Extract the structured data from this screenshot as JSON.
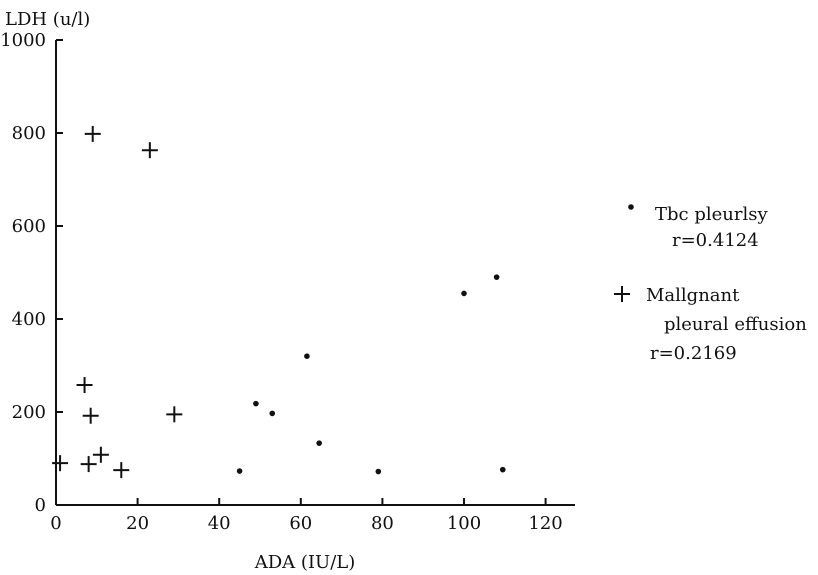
{
  "chart_data": {
    "type": "scatter",
    "xlabel": "ADA (IU/L)",
    "ylabel": "LDH (u/l)",
    "xlim": [
      0,
      125
    ],
    "ylim": [
      0,
      1000
    ],
    "xticks": [
      "0",
      "20",
      "40",
      "60",
      "80",
      "100",
      "120"
    ],
    "yticks": [
      "0",
      "200",
      "400",
      "600",
      "800",
      "1000"
    ],
    "grid": false,
    "legend_position": "right",
    "series": [
      {
        "name": "Tbc pleurlsy",
        "stat": "r=0.4124",
        "marker": "dot",
        "color": "#111111",
        "points": [
          {
            "x": 45,
            "y": 73
          },
          {
            "x": 49,
            "y": 218
          },
          {
            "x": 53,
            "y": 197
          },
          {
            "x": 61.5,
            "y": 320
          },
          {
            "x": 64.5,
            "y": 133
          },
          {
            "x": 79,
            "y": 72
          },
          {
            "x": 100,
            "y": 455
          },
          {
            "x": 108,
            "y": 490
          },
          {
            "x": 109.5,
            "y": 76
          }
        ]
      },
      {
        "name": "Mallgnant pleural effusion",
        "name_lines": [
          "Mallgnant",
          "pleural effusion"
        ],
        "stat": "r=0.2169",
        "marker": "plus",
        "color": "#111111",
        "points": [
          {
            "x": 1,
            "y": 90
          },
          {
            "x": 7,
            "y": 258
          },
          {
            "x": 8,
            "y": 88
          },
          {
            "x": 8.5,
            "y": 192
          },
          {
            "x": 9,
            "y": 798
          },
          {
            "x": 11,
            "y": 108
          },
          {
            "x": 16,
            "y": 75
          },
          {
            "x": 23,
            "y": 763
          },
          {
            "x": 29,
            "y": 195
          }
        ]
      }
    ]
  }
}
